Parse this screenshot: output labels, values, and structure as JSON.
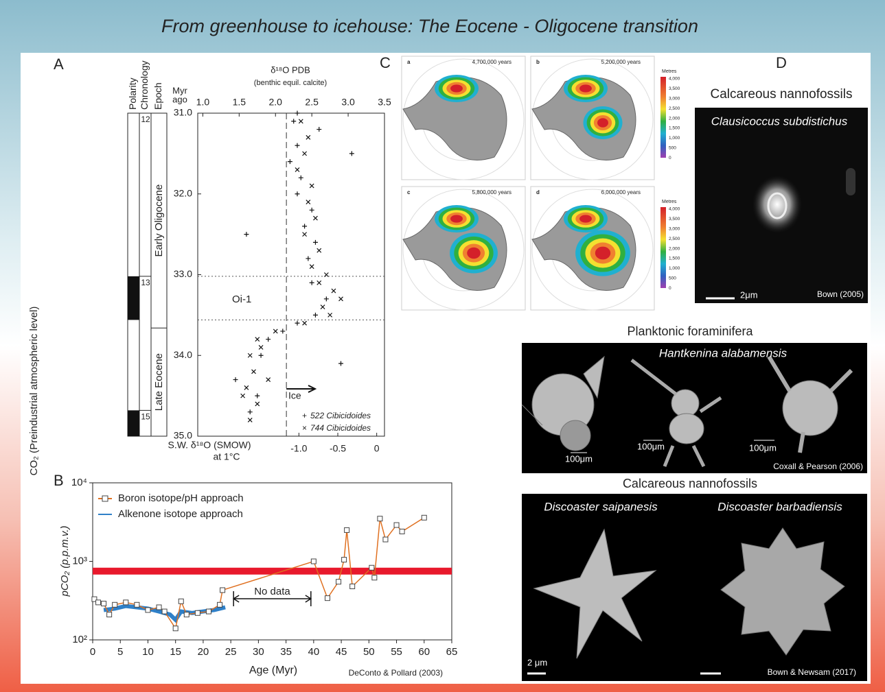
{
  "title": "From greenhouse to icehouse: The Eocene - Oligocene transition",
  "panel_labels": [
    "A",
    "B",
    "C",
    "D"
  ],
  "chart_data": [
    {
      "type": "scatter",
      "x_label": "δ¹⁸O PDB",
      "x_sublabel": "(benthic equil. calcite)",
      "y_label": [
        "Myr",
        "ago"
      ],
      "x2_label": [
        "S.W. δ¹⁸O (SMOW)",
        "at 1°C"
      ],
      "xlim": [
        0.93,
        3.5
      ],
      "xticks": [
        {
          "value": 1,
          "label": "1.0"
        },
        {
          "value": 1.5,
          "label": "1.5"
        },
        {
          "value": 2,
          "label": "2.0"
        },
        {
          "value": 2.5,
          "label": "2.5"
        },
        {
          "value": 3,
          "label": "3.0"
        },
        {
          "value": 3.5,
          "label": "3.5"
        }
      ],
      "x2lim": [
        -2.3,
        0.1
      ],
      "x2ticks": [
        {
          "value": -1,
          "label": "-1.0"
        },
        {
          "value": -0.5,
          "label": "-0.5"
        },
        0
      ],
      "ylim": [
        31,
        35
      ],
      "yticks": [
        {
          "value": 31,
          "label": "31.0"
        },
        {
          "value": 32,
          "label": "32.0"
        },
        {
          "value": 33,
          "label": "33.0"
        },
        {
          "value": 34,
          "label": "34.0"
        },
        {
          "value": 35,
          "label": "35.0"
        }
      ],
      "series": [
        {
          "name": "522 Cibicidoides",
          "marker": "+",
          "x": [
            2.25,
            2.6,
            2.3,
            2.2,
            2.35,
            2.3,
            2.5,
            2.4,
            1.6,
            2.55,
            2.45,
            2.5,
            2.7,
            2.55,
            2.3,
            2.1,
            1.9,
            1.8,
            2.9,
            1.45,
            1.75,
            1.65,
            2.3,
            3.05
          ],
          "y": [
            31.1,
            31.2,
            31.4,
            31.6,
            31.8,
            32.0,
            32.2,
            32.4,
            32.5,
            32.6,
            32.8,
            33.1,
            33.3,
            33.5,
            33.6,
            33.7,
            33.8,
            34.0,
            34.1,
            34.3,
            34.5,
            34.7,
            31.0,
            31.5
          ]
        },
        {
          "name": "744 Cibicidoides",
          "marker": "×",
          "x": [
            2.35,
            2.45,
            2.4,
            2.3,
            2.5,
            2.45,
            2.55,
            2.4,
            2.6,
            2.5,
            2.7,
            2.6,
            2.8,
            2.9,
            2.65,
            2.75,
            2.4,
            2.0,
            1.75,
            1.8,
            1.65,
            1.7,
            1.6,
            1.75,
            1.65,
            1.9,
            1.55
          ],
          "y": [
            31.1,
            31.3,
            31.5,
            31.7,
            31.9,
            32.1,
            32.3,
            32.5,
            32.7,
            32.9,
            33.0,
            33.1,
            33.2,
            33.3,
            33.4,
            33.5,
            33.6,
            33.7,
            33.8,
            33.9,
            34.0,
            34.2,
            34.4,
            34.6,
            34.8,
            34.3,
            34.5
          ]
        }
      ],
      "hlines": [
        33.02,
        33.56
      ],
      "ice_line": 2.15,
      "oi_label": "Oi-1",
      "ice_label": "Ice",
      "strat_headers": [
        "Polarity",
        "Chronology",
        "Epoch"
      ],
      "chrons": [
        {
          "label": "12",
          "from": 31,
          "to": 33.02
        },
        {
          "label": "13",
          "from": 33.02,
          "to": 34.68
        },
        {
          "label": "15",
          "from": 34.68,
          "to": 35
        }
      ],
      "normal_polarity": [
        [
          33.02,
          33.56
        ],
        [
          34.68,
          35
        ]
      ],
      "epochs": [
        {
          "label": "Early Oligocene",
          "from": 31,
          "to": 33.66
        },
        {
          "label": "Late Eocene",
          "from": 33.66,
          "to": 35
        }
      ]
    },
    {
      "type": "line",
      "x_label": "Age (Myr)",
      "y_label": "pCO₂ (p.p.m.v.)",
      "side_label": "CO₂ (Preindustrial atmospheric level)",
      "source": "DeConto & Pollard (2003)",
      "no_data_label": "No data",
      "no_data_range": [
        25.5,
        39.5
      ],
      "threshold": 750,
      "threshold_color": "#e8192c",
      "log_scale": true,
      "xlim": [
        0,
        65
      ],
      "xticks": [
        0,
        5,
        10,
        15,
        20,
        25,
        30,
        35,
        40,
        45,
        50,
        55,
        60,
        65
      ],
      "ylim": [
        100,
        10000
      ],
      "yticks": [
        {
          "value": 100,
          "label": "10²"
        },
        {
          "value": 1000,
          "label": "10³"
        },
        {
          "value": 10000,
          "label": "10⁴"
        }
      ],
      "series": [
        {
          "name": "Boron isotope/pH approach",
          "color": "#e07020",
          "x": [
            0.3,
            1,
            2,
            3,
            4,
            6,
            8,
            10,
            12,
            13,
            15,
            16,
            17,
            19,
            21,
            23,
            23.5,
            40,
            42.5,
            44.5,
            45.5,
            46,
            47,
            50.5,
            51,
            52,
            53,
            55,
            56,
            60
          ],
          "values": [
            330,
            300,
            290,
            210,
            280,
            300,
            280,
            240,
            260,
            230,
            140,
            310,
            210,
            220,
            230,
            280,
            430,
            1000,
            340,
            550,
            1050,
            2500,
            480,
            830,
            620,
            3500,
            1900,
            2900,
            2400,
            3600
          ]
        },
        {
          "name": "Alkenone isotope approach",
          "color": "#2f80c8",
          "x": [
            2,
            4,
            6,
            8,
            10,
            12,
            14,
            15,
            16,
            18,
            20,
            22,
            24
          ],
          "values": [
            240,
            250,
            270,
            260,
            250,
            230,
            210,
            180,
            230,
            220,
            230,
            240,
            260
          ]
        }
      ]
    }
  ],
  "panel_c": {
    "maps": [
      {
        "label": "a",
        "years": "4,700,000 years"
      },
      {
        "label": "b",
        "years": "5,200,000 years"
      },
      {
        "label": "c",
        "years": "5,800,000 years"
      },
      {
        "label": "d",
        "years": "6,000,000 years"
      }
    ],
    "scale_title": "Metres",
    "scale_labels": [
      "4,000",
      "3,500",
      "3,000",
      "2,500",
      "2,000",
      "1,500",
      "1,000",
      "500",
      "0"
    ]
  },
  "panel_d": {
    "nanno_title": "Calcareous nannofossils",
    "nanno_species": "Clausicoccus subdistichus",
    "nanno_scale": "2μm",
    "nanno_source": "Bown (2005)",
    "foram_title": "Planktonic foraminifera",
    "foram_species": "Hantkenina alabamensis",
    "foram_scales": [
      "100μm",
      "100μm",
      "100μm"
    ],
    "foram_source": "Coxall & Pearson (2006)",
    "disco_title": "Calcareous nannofossils",
    "disco_species": [
      "Discoaster saipanesis",
      "Discoaster barbadiensis"
    ],
    "disco_scale": "2 μm",
    "disco_source": "Bown & Newsam (2017)"
  }
}
